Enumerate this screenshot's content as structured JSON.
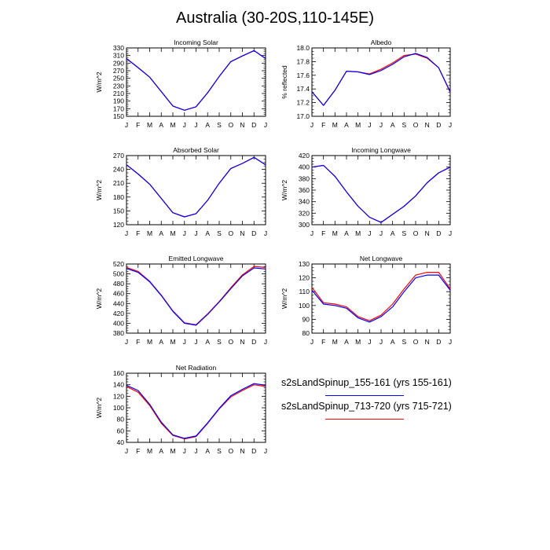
{
  "title": "Australia (30-20S,110-145E)",
  "months": [
    "J",
    "F",
    "M",
    "A",
    "M",
    "J",
    "J",
    "A",
    "S",
    "O",
    "N",
    "D",
    "J"
  ],
  "series": [
    {
      "name": "s2sLandSpinup_155-161 (yrs 155-161)",
      "color": "#0000ff"
    },
    {
      "name": "s2sLandSpinup_713-720 (yrs 715-721)",
      "color": "#ff0000"
    }
  ],
  "chart_data": [
    {
      "type": "line",
      "title": "Incoming Solar",
      "ylabel": "W/m^2",
      "x": [
        "J",
        "F",
        "M",
        "A",
        "M",
        "J",
        "J",
        "A",
        "S",
        "O",
        "N",
        "D",
        "J"
      ],
      "ylim": [
        150,
        330
      ],
      "yticks": [
        "150",
        "170",
        "190",
        "210",
        "230",
        "250",
        "270",
        "290",
        "310",
        "330"
      ],
      "series": [
        {
          "name": "s2sLandSpinup_155-161 (yrs 155-161)",
          "values": [
            302,
            278,
            253,
            215,
            177,
            166,
            175,
            212,
            255,
            294,
            309,
            323,
            302
          ]
        },
        {
          "name": "s2sLandSpinup_713-720 (yrs 715-721)",
          "values": [
            302,
            278,
            253,
            215,
            177,
            166,
            175,
            212,
            255,
            294,
            309,
            323,
            302
          ]
        }
      ]
    },
    {
      "type": "line",
      "title": "Albedo",
      "ylabel": "% reflected",
      "x": [
        "J",
        "F",
        "M",
        "A",
        "M",
        "J",
        "J",
        "A",
        "S",
        "O",
        "N",
        "D",
        "J"
      ],
      "ylim": [
        17.0,
        18.0
      ],
      "yticks": [
        "17.0",
        "17.2",
        "17.4",
        "17.6",
        "17.8",
        "18.0"
      ],
      "series": [
        {
          "name": "s2sLandSpinup_155-161 (yrs 155-161)",
          "values": [
            17.36,
            17.16,
            17.38,
            17.66,
            17.65,
            17.61,
            17.67,
            17.76,
            17.87,
            17.92,
            17.86,
            17.71,
            17.36
          ]
        },
        {
          "name": "s2sLandSpinup_713-720 (yrs 715-721)",
          "values": [
            17.36,
            17.16,
            17.38,
            17.66,
            17.65,
            17.62,
            17.69,
            17.78,
            17.89,
            17.91,
            17.85,
            17.71,
            17.35
          ]
        }
      ]
    },
    {
      "type": "line",
      "title": "Absorbed Solar",
      "ylabel": "W/m^2",
      "x": [
        "J",
        "F",
        "M",
        "A",
        "M",
        "J",
        "J",
        "A",
        "S",
        "O",
        "N",
        "D",
        "J"
      ],
      "ylim": [
        120,
        270
      ],
      "yticks": [
        "120",
        "150",
        "180",
        "210",
        "240",
        "270"
      ],
      "series": [
        {
          "name": "s2sLandSpinup_155-161 (yrs 155-161)",
          "values": [
            250,
            230,
            208,
            177,
            146,
            137,
            144,
            173,
            210,
            242,
            253,
            266,
            250
          ]
        },
        {
          "name": "s2sLandSpinup_713-720 (yrs 715-721)",
          "values": [
            250,
            230,
            208,
            177,
            146,
            137,
            144,
            173,
            210,
            242,
            253,
            266,
            250
          ]
        }
      ]
    },
    {
      "type": "line",
      "title": "Incoming Longwave",
      "ylabel": "W/m^2",
      "x": [
        "J",
        "F",
        "M",
        "A",
        "M",
        "J",
        "J",
        "A",
        "S",
        "O",
        "N",
        "D",
        "J"
      ],
      "ylim": [
        300,
        420
      ],
      "yticks": [
        "300",
        "320",
        "340",
        "360",
        "380",
        "400",
        "420"
      ],
      "series": [
        {
          "name": "s2sLandSpinup_155-161 (yrs 155-161)",
          "values": [
            400,
            403,
            384,
            357,
            332,
            313,
            304,
            318,
            332,
            350,
            373,
            390,
            400
          ]
        },
        {
          "name": "s2sLandSpinup_713-720 (yrs 715-721)",
          "values": [
            400,
            403,
            384,
            357,
            332,
            313,
            304,
            318,
            332,
            350,
            373,
            390,
            400
          ]
        }
      ]
    },
    {
      "type": "line",
      "title": "Emitted Longwave",
      "ylabel": "W/m^2",
      "x": [
        "J",
        "F",
        "M",
        "A",
        "M",
        "J",
        "J",
        "A",
        "S",
        "O",
        "N",
        "D",
        "J"
      ],
      "ylim": [
        380,
        520
      ],
      "yticks": [
        "380",
        "400",
        "420",
        "440",
        "460",
        "480",
        "500",
        "520"
      ],
      "series": [
        {
          "name": "s2sLandSpinup_155-161 (yrs 155-161)",
          "values": [
            511,
            503,
            484,
            456,
            424,
            400,
            396,
            418,
            443,
            470,
            496,
            512,
            510
          ]
        },
        {
          "name": "s2sLandSpinup_713-720 (yrs 715-721)",
          "values": [
            513,
            505,
            485,
            457,
            425,
            401,
            397,
            419,
            444,
            472,
            498,
            515,
            513
          ]
        }
      ]
    },
    {
      "type": "line",
      "title": "Net Longwave",
      "ylabel": "W/m^2",
      "x": [
        "J",
        "F",
        "M",
        "A",
        "M",
        "J",
        "J",
        "A",
        "S",
        "O",
        "N",
        "D",
        "J"
      ],
      "ylim": [
        80,
        130
      ],
      "yticks": [
        "80",
        "90",
        "100",
        "110",
        "120",
        "130"
      ],
      "series": [
        {
          "name": "s2sLandSpinup_155-161 (yrs 155-161)",
          "values": [
            111,
            101,
            100,
            98,
            91,
            88,
            92,
            99,
            110,
            120,
            122,
            122,
            111
          ]
        },
        {
          "name": "s2sLandSpinup_713-720 (yrs 715-721)",
          "values": [
            113,
            102,
            101,
            99,
            92,
            89,
            93,
            101,
            112,
            122,
            124,
            124,
            112
          ]
        }
      ]
    },
    {
      "type": "line",
      "title": "Net Radiation",
      "ylabel": "W/m^2",
      "x": [
        "J",
        "F",
        "M",
        "A",
        "M",
        "J",
        "J",
        "A",
        "S",
        "O",
        "N",
        "D",
        "J"
      ],
      "ylim": [
        40,
        160
      ],
      "yticks": [
        "40",
        "60",
        "80",
        "100",
        "120",
        "140",
        "160"
      ],
      "series": [
        {
          "name": "s2sLandSpinup_155-161 (yrs 155-161)",
          "values": [
            139,
            130,
            106,
            75,
            53,
            47,
            51,
            74,
            99,
            121,
            132,
            142,
            139
          ]
        },
        {
          "name": "s2sLandSpinup_713-720 (yrs 715-721)",
          "values": [
            137,
            127,
            104,
            73,
            52,
            46,
            50,
            73,
            98,
            119,
            130,
            140,
            137
          ]
        }
      ]
    }
  ]
}
